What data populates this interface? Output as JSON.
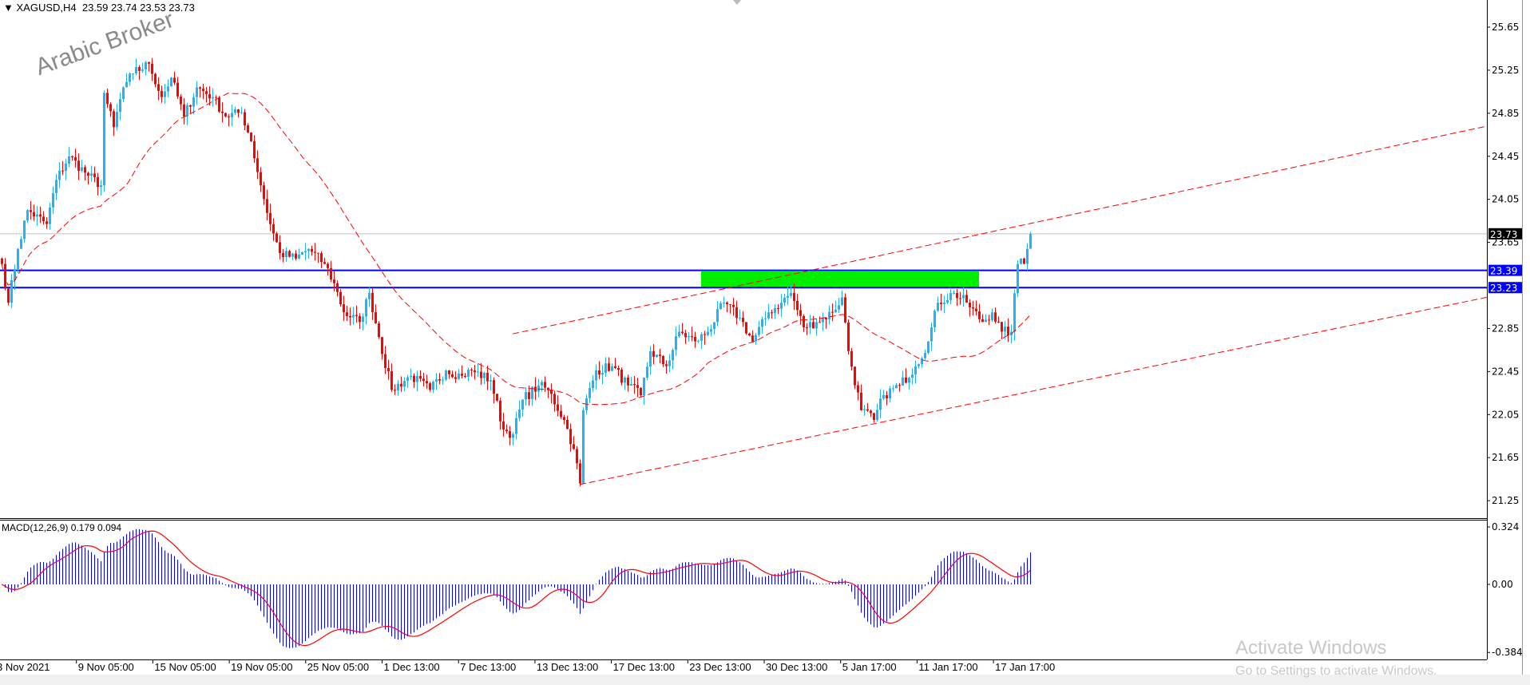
{
  "header": {
    "symbol": "XAGUSD,H4",
    "ohlc": "23.59 23.74 23.53 23.73"
  },
  "watermark": "Arabic Broker",
  "activation": {
    "title": "Activate Windows",
    "subtitle": "Go to Settings to activate Windows."
  },
  "chart_data": {
    "type": "candlestick",
    "symbol": "XAGUSD",
    "timeframe": "H4",
    "price_ticks": [
      "25.65",
      "25.25",
      "24.85",
      "24.45",
      "24.05",
      "23.65",
      "22.85",
      "22.45",
      "22.05",
      "21.65",
      "21.25"
    ],
    "price_range": [
      21.12,
      25.9
    ],
    "current_price": "23.73",
    "levels": [
      {
        "price": "23.39",
        "color": "#0000ff"
      },
      {
        "price": "23.23",
        "color": "#0000ff"
      }
    ],
    "zone": {
      "from_bar": 219,
      "to_bar": 306,
      "low": 23.23,
      "high": 23.38,
      "color": "#00ee00"
    },
    "trendlines": [
      {
        "from": [
          160,
          22.8
        ],
        "to": [
          465,
          24.73
        ],
        "color": "#ff0000",
        "style": "dashed"
      },
      {
        "from": [
          181,
          21.4
        ],
        "to": [
          465,
          23.14
        ],
        "color": "#ff0000",
        "style": "dashed"
      }
    ],
    "moving_average": {
      "color": "#ff0000",
      "style": "dashed"
    },
    "colors": {
      "bull": "#1fb4f2",
      "bear": "#ff0000"
    },
    "time_labels": [
      "3 Nov 2021",
      "9 Nov 05:00",
      "15 Nov 05:00",
      "19 Nov 05:00",
      "25 Nov 05:00",
      "1 Dec 13:00",
      "7 Dec 13:00",
      "13 Dec 13:00",
      "17 Dec 13:00",
      "23 Dec 13:00",
      "30 Dec 13:00",
      "5 Jan 17:00",
      "11 Jan 17:00",
      "17 Jan 17:00"
    ],
    "close_keypoints": [
      [
        0,
        23.45
      ],
      [
        2,
        23.09
      ],
      [
        5,
        23.59
      ],
      [
        8,
        23.95
      ],
      [
        14,
        23.82
      ],
      [
        17,
        24.23
      ],
      [
        21,
        24.45
      ],
      [
        27,
        24.27
      ],
      [
        31,
        24.18
      ],
      [
        32,
        25.04
      ],
      [
        35,
        24.72
      ],
      [
        38,
        25.09
      ],
      [
        41,
        25.22
      ],
      [
        46,
        25.31
      ],
      [
        50,
        25.0
      ],
      [
        53,
        25.18
      ],
      [
        57,
        24.82
      ],
      [
        61,
        25.09
      ],
      [
        66,
        25.0
      ],
      [
        70,
        24.82
      ],
      [
        75,
        24.86
      ],
      [
        78,
        24.59
      ],
      [
        81,
        24.18
      ],
      [
        84,
        23.82
      ],
      [
        87,
        23.55
      ],
      [
        92,
        23.5
      ],
      [
        96,
        23.59
      ],
      [
        101,
        23.45
      ],
      [
        104,
        23.27
      ],
      [
        107,
        23.0
      ],
      [
        112,
        22.91
      ],
      [
        115,
        23.18
      ],
      [
        118,
        22.77
      ],
      [
        122,
        22.28
      ],
      [
        128,
        22.41
      ],
      [
        134,
        22.28
      ],
      [
        139,
        22.46
      ],
      [
        144,
        22.41
      ],
      [
        147,
        22.46
      ],
      [
        153,
        22.37
      ],
      [
        157,
        21.91
      ],
      [
        160,
        21.87
      ],
      [
        163,
        22.19
      ],
      [
        168,
        22.32
      ],
      [
        171,
        22.28
      ],
      [
        176,
        22.0
      ],
      [
        179,
        21.73
      ],
      [
        181,
        21.41
      ],
      [
        182,
        22.09
      ],
      [
        186,
        22.46
      ],
      [
        191,
        22.5
      ],
      [
        196,
        22.32
      ],
      [
        200,
        22.23
      ],
      [
        203,
        22.64
      ],
      [
        208,
        22.5
      ],
      [
        212,
        22.82
      ],
      [
        217,
        22.73
      ],
      [
        221,
        22.82
      ],
      [
        226,
        23.09
      ],
      [
        231,
        22.95
      ],
      [
        235,
        22.73
      ],
      [
        240,
        23.0
      ],
      [
        244,
        23.09
      ],
      [
        247,
        23.18
      ],
      [
        251,
        22.86
      ],
      [
        255,
        22.91
      ],
      [
        260,
        23.0
      ],
      [
        263,
        23.14
      ],
      [
        265,
        22.64
      ],
      [
        269,
        22.09
      ],
      [
        273,
        22.0
      ],
      [
        276,
        22.23
      ],
      [
        281,
        22.32
      ],
      [
        286,
        22.5
      ],
      [
        290,
        22.73
      ],
      [
        293,
        23.09
      ],
      [
        298,
        23.18
      ],
      [
        302,
        23.09
      ],
      [
        307,
        22.91
      ],
      [
        310,
        23.0
      ],
      [
        313,
        22.82
      ],
      [
        316,
        22.82
      ],
      [
        318,
        23.45
      ],
      [
        319,
        23.5
      ],
      [
        320,
        23.45
      ],
      [
        322,
        23.73
      ]
    ],
    "macd": {
      "label": "MACD(12,26,9) 0.179 0.094",
      "ticks": [
        "0.324",
        "0.00",
        "-0.384"
      ],
      "histogram_color": "#0000ff",
      "signal_color": "#ff0000"
    }
  }
}
